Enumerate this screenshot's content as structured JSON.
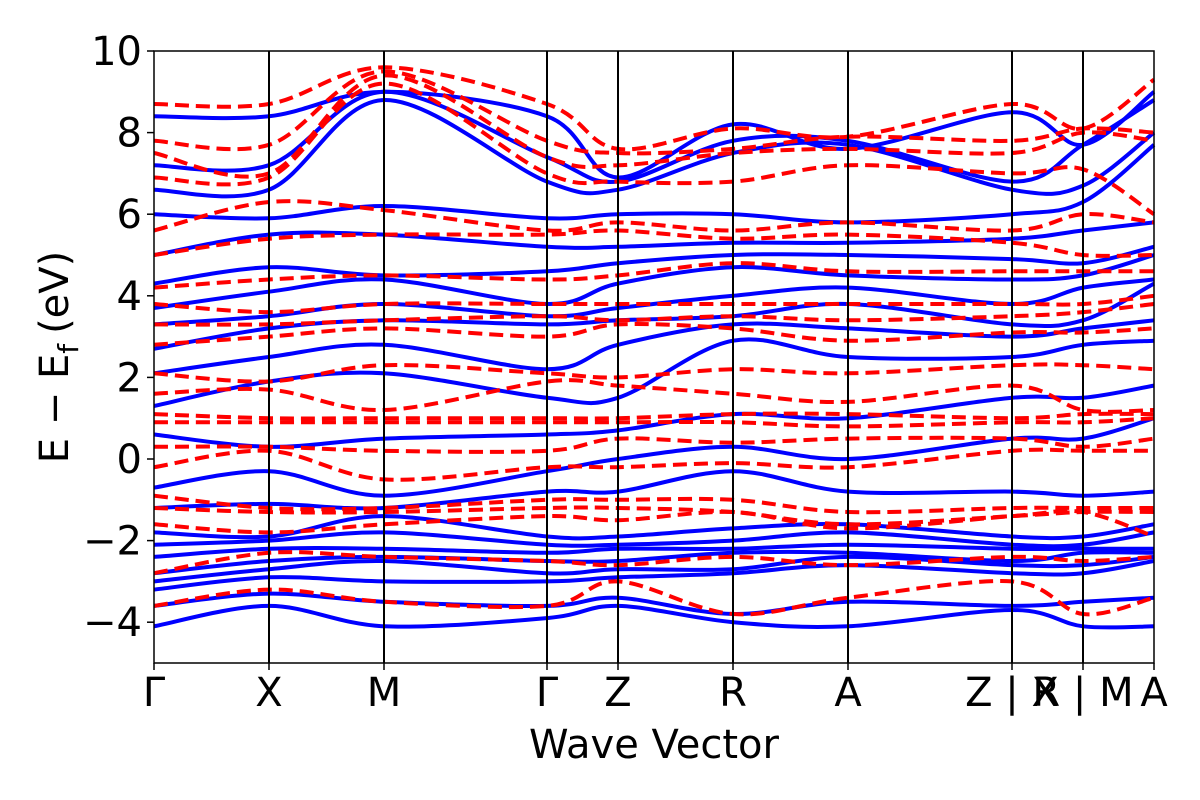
{
  "chart_data": {
    "type": "line",
    "title": "",
    "xlabel": "Wave Vector",
    "ylabel": "E − E",
    "ylabel_sub": "f",
    "ylabel_unit": "(eV)",
    "ylim": [
      -5,
      10
    ],
    "xlim": [
      0,
      1.0
    ],
    "yticks": [
      {
        "value": -4,
        "label": "−4"
      },
      {
        "value": -2,
        "label": "−2"
      },
      {
        "value": 0,
        "label": "0"
      },
      {
        "value": 2,
        "label": "2"
      },
      {
        "value": 4,
        "label": "4"
      },
      {
        "value": 6,
        "label": "6"
      },
      {
        "value": 8,
        "label": "8"
      },
      {
        "value": 10,
        "label": "10"
      }
    ],
    "kpoints": [
      {
        "pos": 0.0,
        "label": "Γ"
      },
      {
        "pos": 0.115,
        "label": "X"
      },
      {
        "pos": 0.23,
        "label": "M"
      },
      {
        "pos": 0.393,
        "label": "Γ"
      },
      {
        "pos": 0.464,
        "label": "Z"
      },
      {
        "pos": 0.579,
        "label": "R"
      },
      {
        "pos": 0.694,
        "label": "A"
      },
      {
        "pos": 0.858,
        "label": "Z | X"
      },
      {
        "pos": 0.929,
        "label": "R | M"
      },
      {
        "pos": 1.0,
        "label": "A"
      }
    ],
    "series": [
      {
        "name": "bands (solid)",
        "color": "#0000ff",
        "style": "solid",
        "kx": [
          0.0,
          0.115,
          0.23,
          0.393,
          0.464,
          0.579,
          0.694,
          0.858,
          0.929,
          1.0
        ],
        "bands": [
          [
            -4.1,
            -3.6,
            -4.1,
            -3.9,
            -3.6,
            -4.0,
            -4.1,
            -3.7,
            -4.1,
            -4.1
          ],
          [
            -3.6,
            -3.3,
            -3.5,
            -3.6,
            -3.4,
            -3.8,
            -3.5,
            -3.6,
            -3.5,
            -3.4
          ],
          [
            -3.2,
            -2.9,
            -3.0,
            -3.0,
            -2.9,
            -2.8,
            -2.6,
            -2.8,
            -2.8,
            -2.5
          ],
          [
            -3.0,
            -2.7,
            -2.5,
            -2.8,
            -2.7,
            -2.7,
            -2.4,
            -2.6,
            -2.6,
            -2.4
          ],
          [
            -2.8,
            -2.5,
            -2.4,
            -2.5,
            -2.5,
            -2.3,
            -2.3,
            -2.5,
            -2.3,
            -2.3
          ],
          [
            -2.4,
            -2.2,
            -2.2,
            -2.3,
            -2.2,
            -2.2,
            -2.1,
            -2.2,
            -2.2,
            -2.2
          ],
          [
            -2.1,
            -2.0,
            -1.8,
            -2.1,
            -2.1,
            -2.0,
            -1.8,
            -2.1,
            -2.1,
            -1.8
          ],
          [
            -1.8,
            -1.9,
            -1.4,
            -1.9,
            -1.9,
            -1.7,
            -1.6,
            -1.9,
            -1.9,
            -1.6
          ],
          [
            -1.2,
            -1.1,
            -1.2,
            -0.8,
            -0.8,
            -0.3,
            -0.8,
            -0.8,
            -0.9,
            -0.8
          ],
          [
            -0.7,
            -0.3,
            -0.9,
            -0.3,
            0.0,
            0.3,
            0.0,
            0.5,
            0.5,
            1.0
          ],
          [
            0.6,
            0.3,
            0.5,
            0.6,
            0.7,
            1.1,
            1.0,
            1.5,
            1.5,
            1.8
          ],
          [
            1.3,
            1.9,
            2.1,
            1.5,
            1.5,
            2.9,
            2.5,
            2.5,
            2.8,
            2.9
          ],
          [
            2.1,
            2.5,
            2.8,
            2.2,
            2.8,
            3.3,
            3.2,
            3.0,
            3.2,
            3.4
          ],
          [
            2.7,
            3.2,
            3.4,
            3.3,
            3.4,
            3.5,
            3.8,
            3.3,
            3.4,
            4.3
          ],
          [
            3.3,
            3.5,
            3.8,
            3.5,
            3.7,
            4.0,
            4.2,
            3.8,
            4.2,
            4.4
          ],
          [
            3.7,
            4.1,
            4.4,
            3.8,
            4.3,
            4.7,
            4.5,
            4.4,
            4.5,
            5.0
          ],
          [
            4.3,
            4.7,
            4.5,
            4.6,
            4.8,
            5.0,
            5.0,
            4.9,
            4.8,
            5.2
          ],
          [
            5.0,
            5.5,
            5.5,
            5.2,
            5.2,
            5.3,
            5.3,
            5.4,
            5.6,
            5.8
          ],
          [
            6.0,
            5.9,
            6.2,
            5.9,
            6.0,
            6.0,
            5.8,
            6.0,
            6.3,
            7.7
          ],
          [
            6.6,
            6.6,
            8.8,
            6.8,
            6.6,
            7.5,
            7.7,
            6.6,
            6.7,
            8.0
          ],
          [
            7.2,
            7.2,
            9.0,
            7.4,
            6.8,
            7.8,
            7.8,
            6.8,
            7.7,
            8.8
          ],
          [
            8.4,
            8.4,
            9.0,
            8.4,
            6.9,
            8.2,
            7.6,
            8.5,
            7.7,
            9.0
          ]
        ]
      },
      {
        "name": "bands (dashed)",
        "color": "#ff0000",
        "style": "dashed",
        "kx": [
          0.0,
          0.115,
          0.23,
          0.393,
          0.464,
          0.579,
          0.694,
          0.858,
          0.929,
          1.0
        ],
        "bands": [
          [
            -3.6,
            -3.2,
            -3.5,
            -3.6,
            -3.0,
            -3.8,
            -3.4,
            -3.0,
            -3.8,
            -3.4
          ],
          [
            -2.8,
            -2.3,
            -2.4,
            -2.5,
            -2.6,
            -2.4,
            -2.6,
            -2.4,
            -2.5,
            -2.4
          ],
          [
            -1.6,
            -1.8,
            -1.6,
            -1.4,
            -1.5,
            -1.3,
            -1.7,
            -1.4,
            -1.3,
            -1.9
          ],
          [
            -1.2,
            -1.3,
            -1.3,
            -1.2,
            -1.2,
            -1.3,
            -1.6,
            -1.4,
            -1.3,
            -1.3
          ],
          [
            -0.9,
            -1.2,
            -1.2,
            -1.0,
            -1.0,
            -1.0,
            -1.3,
            -1.2,
            -1.2,
            -1.2
          ],
          [
            -0.2,
            0.2,
            -0.5,
            -0.2,
            -0.2,
            -0.1,
            -0.2,
            0.2,
            0.2,
            0.2
          ],
          [
            0.3,
            0.3,
            0.2,
            0.2,
            0.5,
            0.4,
            0.5,
            0.5,
            0.3,
            0.5
          ],
          [
            0.9,
            0.9,
            0.9,
            0.9,
            0.9,
            0.9,
            0.8,
            0.9,
            0.9,
            1.0
          ],
          [
            1.1,
            1.0,
            1.0,
            1.0,
            1.0,
            1.1,
            1.1,
            1.0,
            1.1,
            1.1
          ],
          [
            1.6,
            1.7,
            1.2,
            1.9,
            1.8,
            1.6,
            1.4,
            1.8,
            1.2,
            1.2
          ],
          [
            2.1,
            1.9,
            2.3,
            2.1,
            2.0,
            2.2,
            2.1,
            2.3,
            2.3,
            2.2
          ],
          [
            2.8,
            3.0,
            3.2,
            3.0,
            3.3,
            3.2,
            2.9,
            3.1,
            3.1,
            3.2
          ],
          [
            3.3,
            3.3,
            3.4,
            3.5,
            3.4,
            3.5,
            3.4,
            3.5,
            3.6,
            3.8
          ],
          [
            3.8,
            3.6,
            3.8,
            3.8,
            3.8,
            3.8,
            3.8,
            3.8,
            3.8,
            4.0
          ],
          [
            4.2,
            4.4,
            4.5,
            4.4,
            4.5,
            4.8,
            4.6,
            4.6,
            4.6,
            4.6
          ],
          [
            5.0,
            5.4,
            5.5,
            5.5,
            5.6,
            5.4,
            5.5,
            5.3,
            5.0,
            5.0
          ],
          [
            5.6,
            6.3,
            6.1,
            5.6,
            5.8,
            5.6,
            5.8,
            5.6,
            6.0,
            5.8
          ],
          [
            6.9,
            6.9,
            9.2,
            7.0,
            6.8,
            6.8,
            7.2,
            7.0,
            7.1,
            6.0
          ],
          [
            7.5,
            7.0,
            9.4,
            7.4,
            7.2,
            7.5,
            7.6,
            7.5,
            8.0,
            7.8
          ],
          [
            7.8,
            7.7,
            9.5,
            7.8,
            7.5,
            7.6,
            7.9,
            7.8,
            8.1,
            8.0
          ],
          [
            8.7,
            8.7,
            9.6,
            8.7,
            7.6,
            8.1,
            7.9,
            8.7,
            8.1,
            9.3
          ]
        ]
      }
    ]
  }
}
